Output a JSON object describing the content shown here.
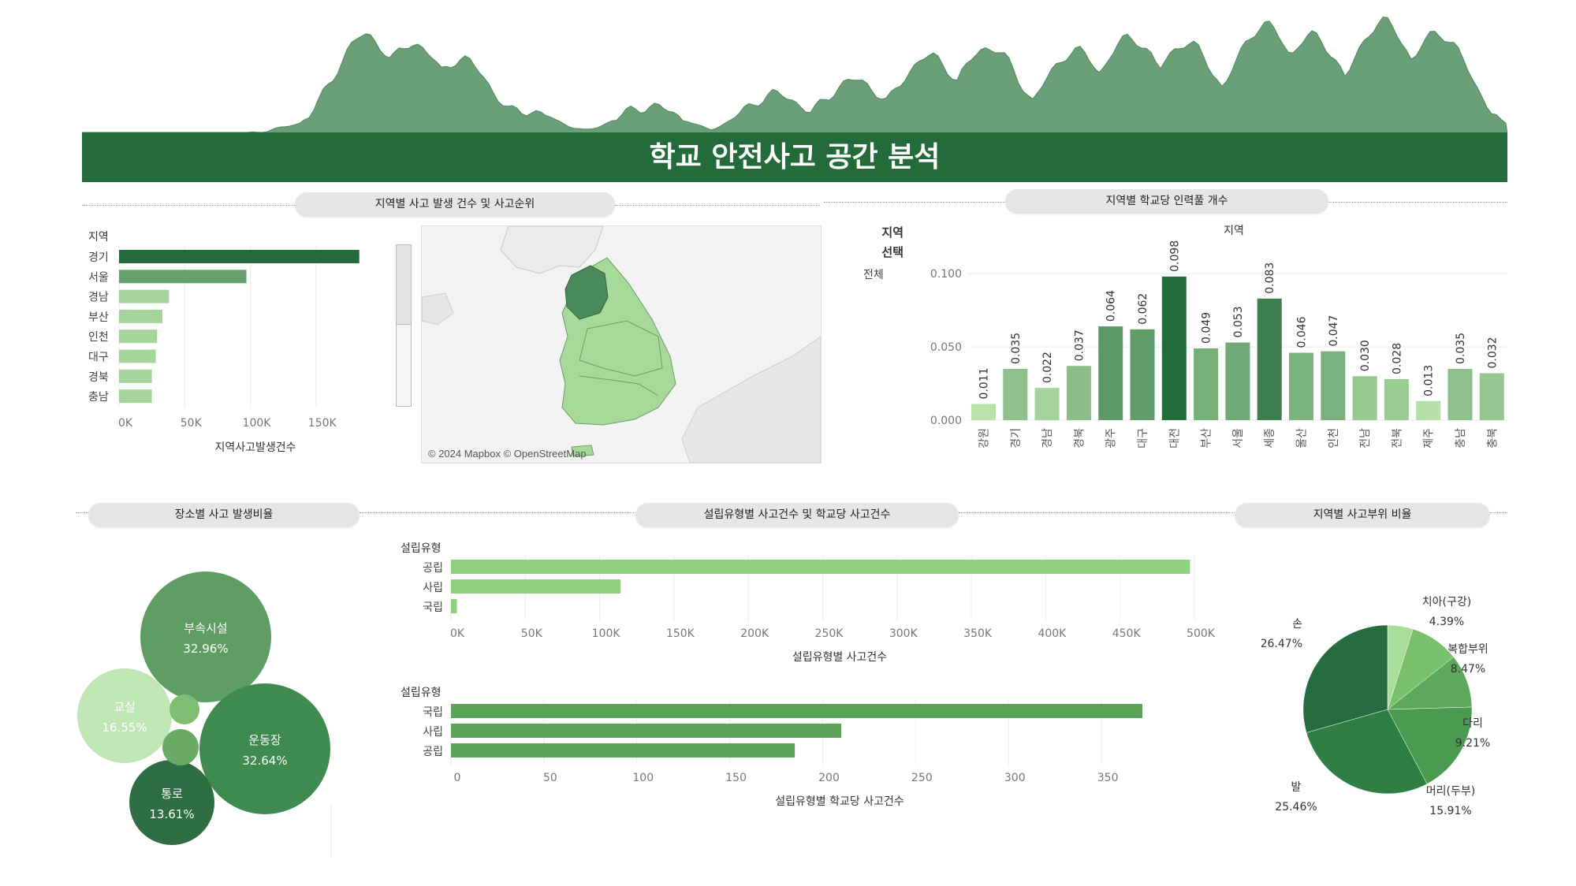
{
  "dashboard": {
    "title": "학교 안전사고 공간 분석",
    "panels": {
      "region_accidents": "지역별 사고 발생 건수 및 사고순위",
      "per_school_staff": "지역별 학교당 인력풀 개수",
      "place_ratio": "장소별 사고 발생비율",
      "founding_type": "설립유형별 사고건수 및 학교당 사고건수",
      "body_part_ratio": "지역별 사고부위 비율"
    },
    "filter": {
      "label_line1": "지역",
      "label_line2": "선택",
      "value": "전체"
    },
    "map_credit": "© 2024 Mapbox © OpenStreetMap",
    "colors": {
      "title_bg": "#246b3c",
      "dark_green": "#246b3c",
      "light_green": "#8fd17f"
    }
  },
  "chart_data": [
    {
      "id": "region_bar",
      "type": "bar",
      "orientation": "horizontal",
      "dimension_label": "지역",
      "categories": [
        "경기",
        "서울",
        "경남",
        "부산",
        "인천",
        "대구",
        "경북",
        "충남"
      ],
      "values": [
        183000,
        97000,
        38000,
        33000,
        29000,
        28000,
        25000,
        25000
      ],
      "xlabel": "지역사고발생건수",
      "xticks": [
        "0K",
        "50K",
        "100K",
        "150K"
      ],
      "xlim": [
        0,
        200000
      ]
    },
    {
      "id": "staff_bar",
      "type": "bar",
      "title": "지역",
      "categories": [
        "강원",
        "경기",
        "경남",
        "경북",
        "광주",
        "대구",
        "대전",
        "부산",
        "서울",
        "세종",
        "울산",
        "인천",
        "전남",
        "전북",
        "제주",
        "충남",
        "충북"
      ],
      "values": [
        0.011,
        0.035,
        0.022,
        0.037,
        0.064,
        0.062,
        0.098,
        0.049,
        0.053,
        0.083,
        0.046,
        0.047,
        0.03,
        0.028,
        0.013,
        0.035,
        0.032
      ],
      "value_labels": [
        "0.011",
        "0.035",
        "0.022",
        "0.037",
        "0.064",
        "0.062",
        "0.098",
        "0.049",
        "0.053",
        "0.083",
        "0.046",
        "0.047",
        "0.030",
        "0.028",
        "0.013",
        "0.035",
        "0.032"
      ],
      "yticks": [
        "0.000",
        "0.050",
        "0.100"
      ],
      "ylim": [
        0,
        0.12
      ]
    },
    {
      "id": "place_bubbles",
      "type": "bubble",
      "items": [
        {
          "name": "부속시설",
          "pct": "32.96%",
          "value": 32.96
        },
        {
          "name": "운동장",
          "pct": "32.64%",
          "value": 32.64
        },
        {
          "name": "교실",
          "pct": "16.55%",
          "value": 16.55
        },
        {
          "name": "통로",
          "pct": "13.61%",
          "value": 13.61
        },
        {
          "name": "",
          "pct": "",
          "value": 2.3
        },
        {
          "name": "",
          "pct": "",
          "value": 1.6
        }
      ]
    },
    {
      "id": "founding_accidents",
      "type": "bar",
      "orientation": "horizontal",
      "dimension_label": "설립유형",
      "categories": [
        "공립",
        "사립",
        "국립"
      ],
      "values": [
        497000,
        114000,
        4000
      ],
      "xlabel": "설립유형별 사고건수",
      "xticks": [
        "0K",
        "50K",
        "100K",
        "150K",
        "200K",
        "250K",
        "300K",
        "350K",
        "400K",
        "450K",
        "500K"
      ],
      "xlim": [
        0,
        500000
      ]
    },
    {
      "id": "founding_per_school",
      "type": "bar",
      "orientation": "horizontal",
      "dimension_label": "설립유형",
      "categories": [
        "국립",
        "사립",
        "공립"
      ],
      "values": [
        372,
        210,
        185
      ],
      "xlabel": "설립유형별 학교당 사고건수",
      "xticks": [
        "0",
        "50",
        "100",
        "150",
        "200",
        "250",
        "300",
        "350"
      ],
      "xlim": [
        0,
        400
      ]
    },
    {
      "id": "body_part_pie",
      "type": "pie",
      "slices": [
        {
          "name": "손",
          "pct": "26.47%",
          "value": 26.47
        },
        {
          "name": "치아(구강)",
          "pct": "4.39%",
          "value": 4.39
        },
        {
          "name": "복합부위",
          "pct": "8.47%",
          "value": 8.47
        },
        {
          "name": "다리",
          "pct": "9.21%",
          "value": 9.21
        },
        {
          "name": "머리(두부)",
          "pct": "15.91%",
          "value": 15.91
        },
        {
          "name": "발",
          "pct": "25.46%",
          "value": 25.46
        }
      ]
    }
  ]
}
